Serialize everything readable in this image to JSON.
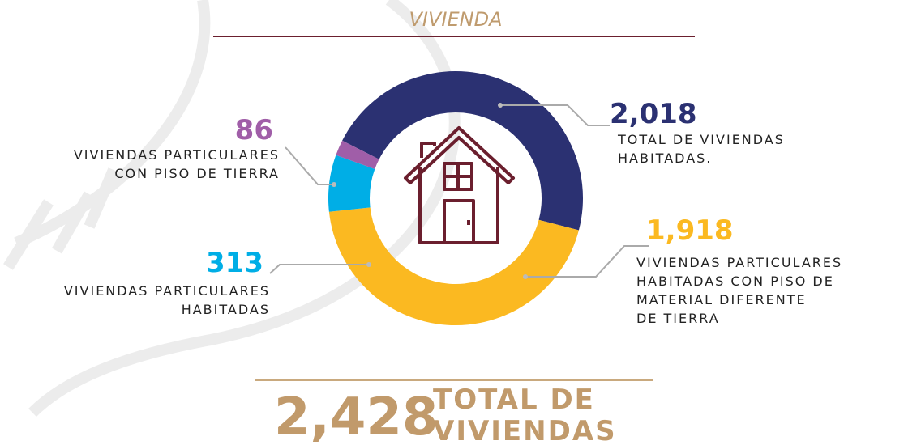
{
  "title": "VIVIENDA",
  "chart_data": {
    "type": "pie",
    "categories": [
      [
        "TOTAL DE VIVIENDAS",
        "HABITADAS."
      ],
      [
        "VIVIENDAS PARTICULARES",
        "HABITADAS CON PISO DE",
        "MATERIAL DIFERENTE",
        "DE TIERRA"
      ],
      [
        "VIVIENDAS PARTICULARES",
        "HABITADAS"
      ],
      [
        "VIVIENDAS PARTICULARES",
        "CON PISO DE TIERRA"
      ]
    ],
    "values": [
      2018,
      1918,
      313,
      86
    ],
    "value_labels": [
      "2,018",
      "1,918",
      "313",
      "86"
    ],
    "colors": [
      "#2b3172",
      "#fbb921",
      "#00aee6",
      "#a05ea8"
    ]
  },
  "total": {
    "value": "2,428",
    "label": [
      "TOTAL DE",
      "VIVIENDAS"
    ]
  }
}
